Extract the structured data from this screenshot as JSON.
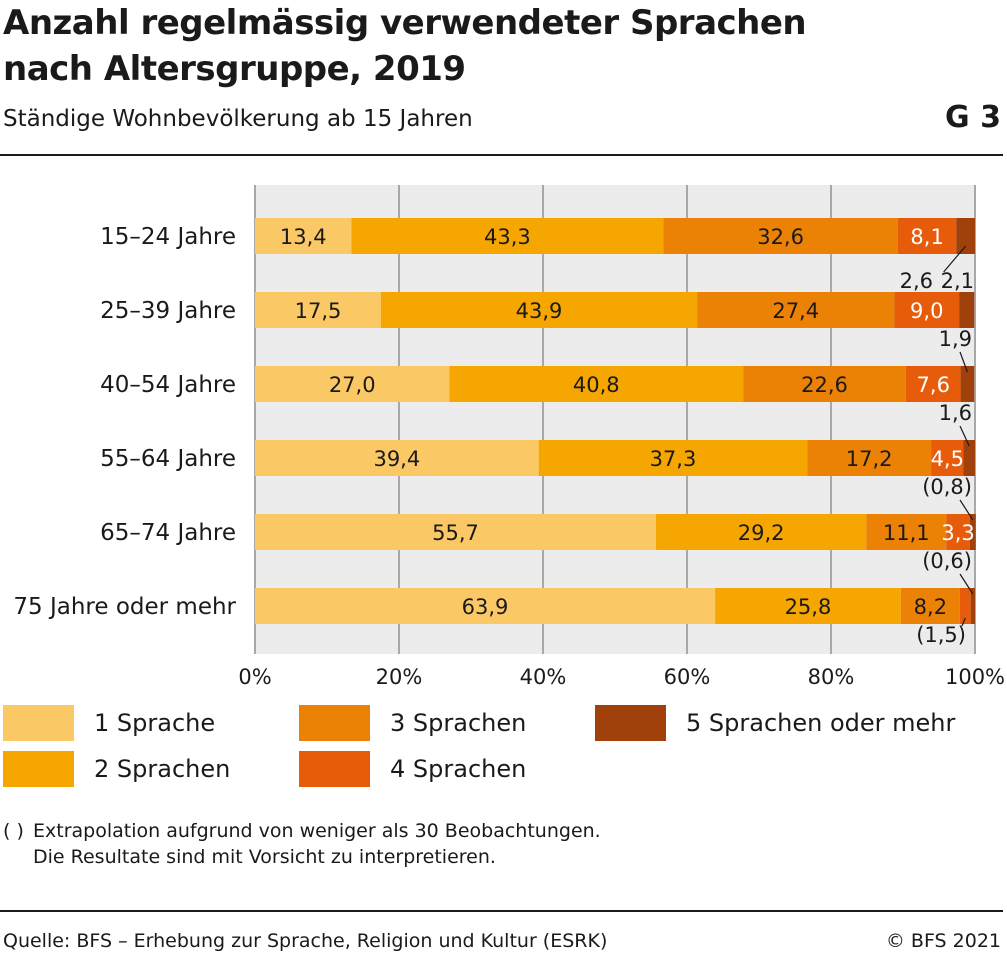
{
  "header": {
    "title": "Anzahl regelmässig verwendeter Sprachen nach Altersgruppe, 2019",
    "subtitle": "Ständige Wohnbevölkerung ab 15 Jahren",
    "chart_number": "G 3"
  },
  "footnote": {
    "symbol": "( )",
    "line1": "Extrapolation aufgrund von weniger als 30 Beobachtungen.",
    "line2": "Die Resultate sind mit Vorsicht zu interpretieren."
  },
  "footer": {
    "source": "Quelle: BFS – Erhebung zur Sprache, Religion und Kultur (ESRK)",
    "copyright": "© BFS 2021"
  },
  "chart_data": {
    "type": "bar",
    "orientation": "horizontal",
    "stacked": true,
    "categories": [
      "15–24 Jahre",
      "25–39 Jahre",
      "40–54 Jahre",
      "55–64 Jahre",
      "65–74 Jahre",
      "75 Jahre oder mehr"
    ],
    "series": [
      {
        "name": "1 Sprache",
        "color": "#fbc866",
        "values": [
          13.4,
          17.5,
          27.0,
          39.4,
          55.7,
          63.9
        ],
        "labels": [
          "13,4",
          "17,5",
          "27,0",
          "39,4",
          "55,7",
          "63,9"
        ]
      },
      {
        "name": "2 Sprachen",
        "color": "#f5a600",
        "values": [
          43.3,
          43.9,
          40.8,
          37.3,
          29.2,
          25.8
        ],
        "labels": [
          "43,3",
          "43,9",
          "40,8",
          "37,3",
          "29,2",
          "25,8"
        ]
      },
      {
        "name": "3 Sprachen",
        "color": "#ec8205",
        "values": [
          32.6,
          27.4,
          22.6,
          17.2,
          11.1,
          8.2
        ],
        "labels": [
          "32,6",
          "27,4",
          "22,6",
          "17,2",
          "11,1",
          "8,2"
        ]
      },
      {
        "name": "4 Sprachen",
        "color": "#e75c0a",
        "values": [
          8.1,
          9.0,
          7.6,
          4.5,
          3.3,
          1.5
        ],
        "labels": [
          "8,1",
          "9,0",
          "7,6",
          "4,5",
          "3,3",
          "(1,5)"
        ]
      },
      {
        "name": "5 Sprachen oder mehr",
        "color": "#a0410c",
        "values": [
          2.6,
          2.1,
          1.9,
          1.6,
          0.8,
          0.6
        ],
        "labels": [
          "2,6",
          "2,1",
          "1,9",
          "1,6",
          "(0,8)",
          "(0,6)"
        ]
      }
    ],
    "xlim": [
      0,
      100
    ],
    "xticks": [
      "0%",
      "20%",
      "40%",
      "60%",
      "80%",
      "100%"
    ],
    "grid": true,
    "legend": "bottom"
  }
}
